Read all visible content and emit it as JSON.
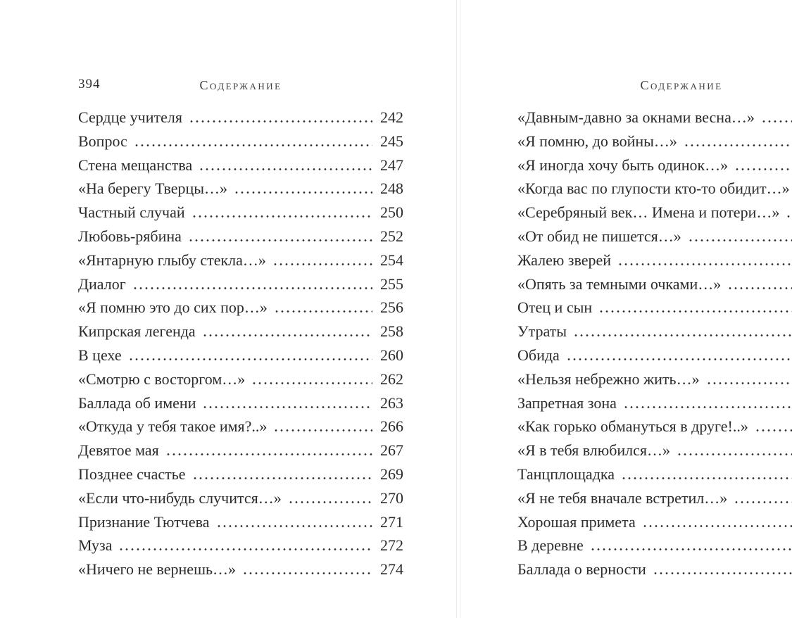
{
  "colors": {
    "ink": "#2b2b2b",
    "paper": "#ffffff"
  },
  "left_page": {
    "folio": "394",
    "header": "Содержание",
    "entries": [
      {
        "title": "Сердце учителя",
        "page": "242"
      },
      {
        "title": "Вопрос",
        "page": "245"
      },
      {
        "title": "Стена мещанства",
        "page": "247"
      },
      {
        "title": "«На берегу Тверцы…»",
        "page": "248"
      },
      {
        "title": "Частный случай",
        "page": "250"
      },
      {
        "title": "Любовь-рябина",
        "page": "252"
      },
      {
        "title": "«Янтарную глыбу стекла…»",
        "page": "254"
      },
      {
        "title": "Диалог",
        "page": "255"
      },
      {
        "title": "«Я помню это до сих пор…»",
        "page": "256"
      },
      {
        "title": "Кипрская легенда",
        "page": "258"
      },
      {
        "title": "В цехе",
        "page": "260"
      },
      {
        "title": "«Смотрю с восторгом…»",
        "page": "262"
      },
      {
        "title": "Баллада об имени",
        "page": "263"
      },
      {
        "title": "«Откуда у тебя такое имя?..»",
        "page": "266"
      },
      {
        "title": "Девятое мая",
        "page": "267"
      },
      {
        "title": "Позднее счастье",
        "page": "269"
      },
      {
        "title": "«Если что-нибудь случится…»",
        "page": "270"
      },
      {
        "title": "Признание Тютчева",
        "page": "271"
      },
      {
        "title": "Муза",
        "page": "272"
      },
      {
        "title": "«Ничего не вернешь…»",
        "page": "274"
      }
    ]
  },
  "right_page": {
    "header": "Содержание",
    "entries": [
      {
        "title": "«Давным-давно за окнами весна…»"
      },
      {
        "title": "«Я помню, до войны…»"
      },
      {
        "title": "«Я иногда хочу быть одинок…»"
      },
      {
        "title": "«Когда вас по глупости кто-то обидит…»"
      },
      {
        "title": "«Серебряный век… Имена и потери…»"
      },
      {
        "title": "«От обид не пишется…»"
      },
      {
        "title": "Жалею зверей"
      },
      {
        "title": "«Опять за темными очками…»"
      },
      {
        "title": "Отец и сын"
      },
      {
        "title": "Утраты"
      },
      {
        "title": "Обида"
      },
      {
        "title": "«Нельзя небрежно жить…»"
      },
      {
        "title": "Запретная зона"
      },
      {
        "title": "«Как горько обмануться в друге!..»"
      },
      {
        "title": "«Я в тебя влюбился…»"
      },
      {
        "title": "Танцплощадка"
      },
      {
        "title": "«Я не тебя вначале встретил…»"
      },
      {
        "title": "Хорошая примета"
      },
      {
        "title": "В деревне"
      },
      {
        "title": "Баллада о верности"
      }
    ]
  }
}
